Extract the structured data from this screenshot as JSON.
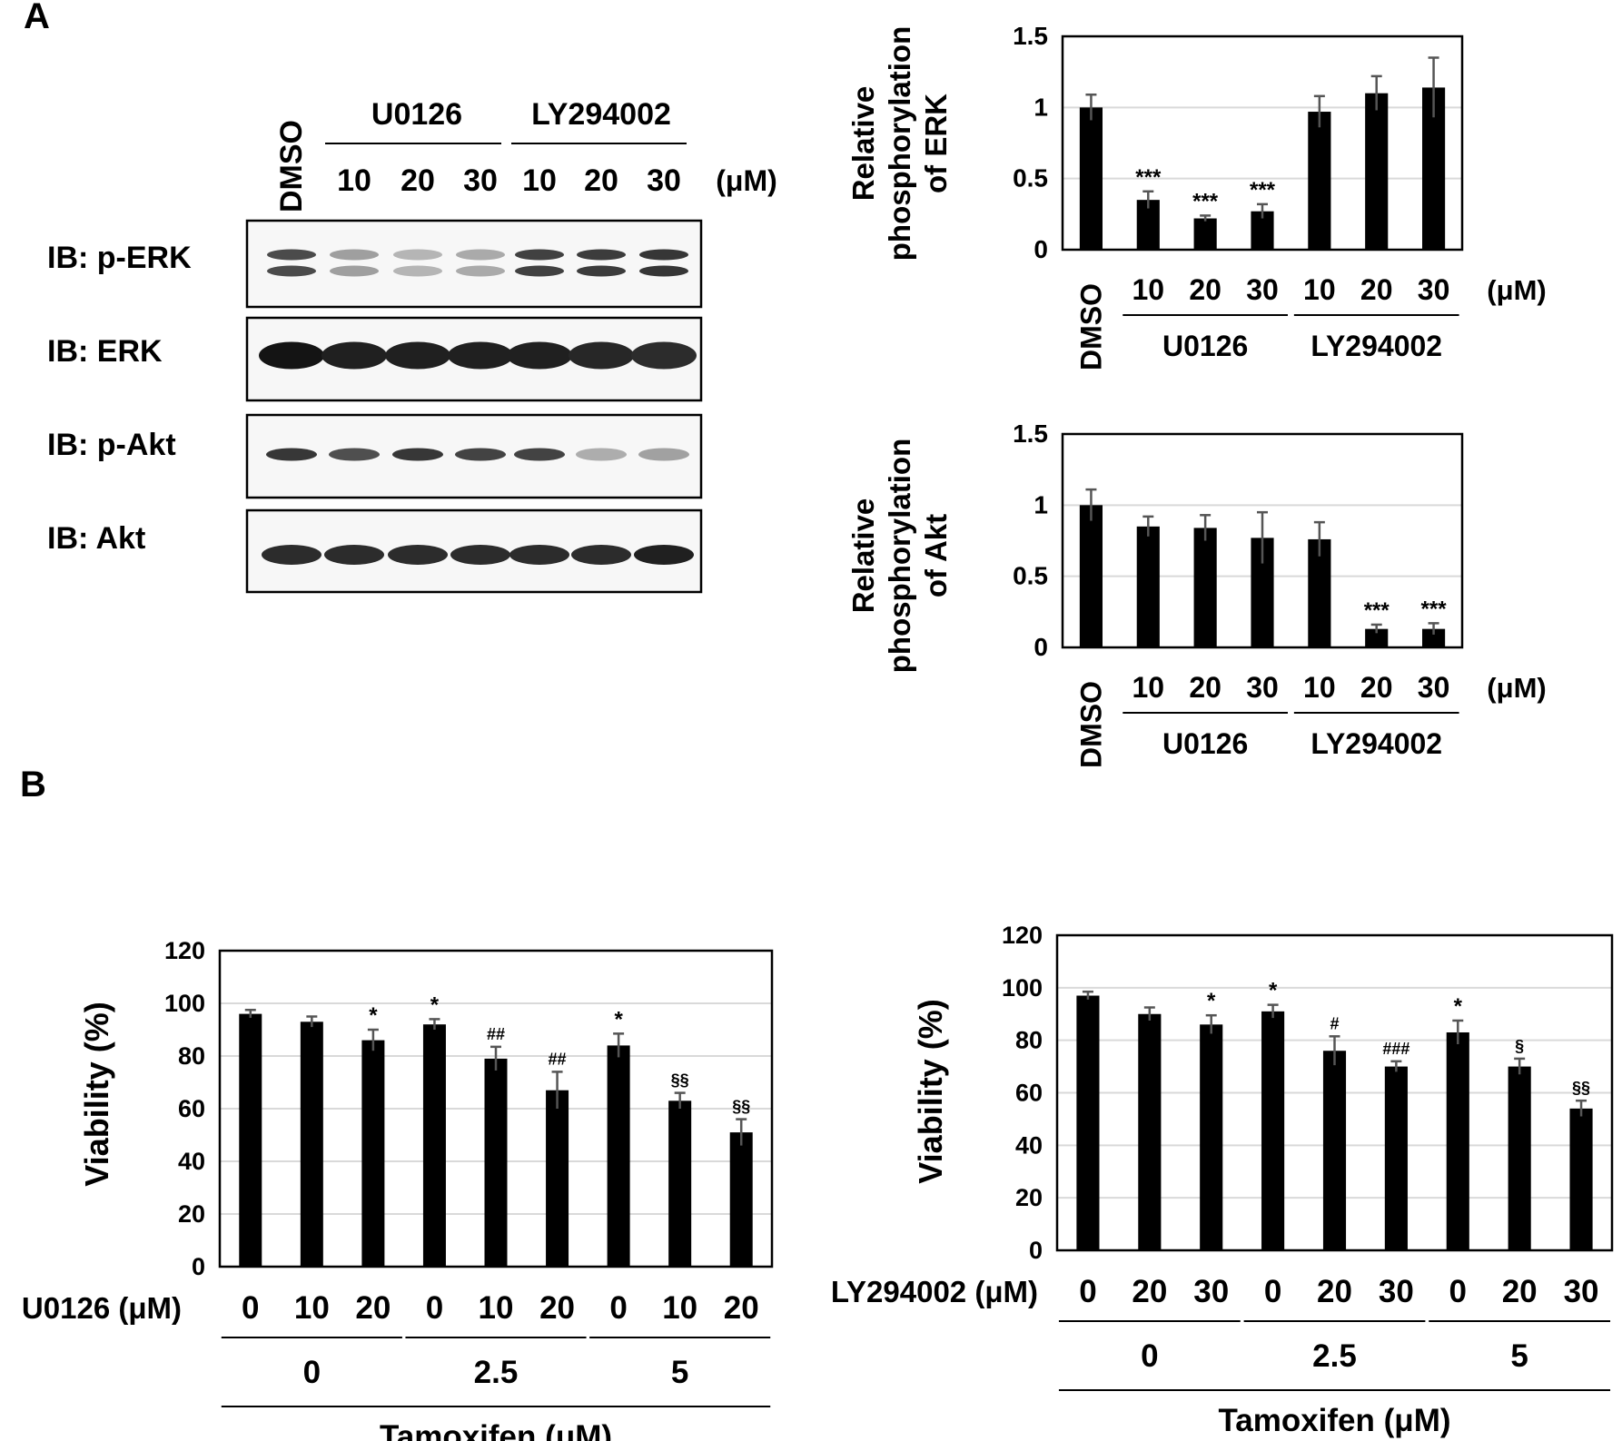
{
  "panels": {
    "a": "A",
    "b": "B"
  },
  "blot": {
    "lanes": [
      "DMSO",
      "10",
      "20",
      "30",
      "10",
      "20",
      "30"
    ],
    "groups": [
      "U0126",
      "LY294002"
    ],
    "unit": "(μM)",
    "rows": [
      {
        "label": "IB: p-ERK",
        "band": "doublet",
        "intensity": [
          0.85,
          0.45,
          0.35,
          0.4,
          0.9,
          0.92,
          0.95
        ]
      },
      {
        "label": "IB: ERK",
        "band": "thick",
        "intensity": [
          1.0,
          0.95,
          0.95,
          0.95,
          0.95,
          0.92,
          0.9
        ]
      },
      {
        "label": "IB: p-Akt",
        "band": "single",
        "intensity": [
          0.85,
          0.75,
          0.85,
          0.8,
          0.8,
          0.35,
          0.4
        ]
      },
      {
        "label": "IB: Akt",
        "band": "single-thick",
        "intensity": [
          0.9,
          0.9,
          0.9,
          0.9,
          0.9,
          0.9,
          0.95
        ]
      }
    ]
  },
  "chart_data": [
    {
      "id": "erk",
      "type": "bar",
      "ylabel": [
        "Relative",
        "phosphorylation",
        "of ERK"
      ],
      "ylim": [
        0,
        1.5
      ],
      "yticks": [
        0,
        0.5,
        1,
        1.5
      ],
      "ytick_labels": [
        "0",
        "0.5",
        "1",
        "1.5"
      ],
      "grid": true,
      "categories": [
        "DMSO",
        "10",
        "20",
        "30",
        "10",
        "20",
        "30"
      ],
      "values": [
        1.0,
        0.35,
        0.22,
        0.27,
        0.97,
        1.1,
        1.14
      ],
      "errors": [
        0.09,
        0.06,
        0.02,
        0.05,
        0.11,
        0.12,
        0.21
      ],
      "annotations": [
        "",
        "***",
        "***",
        "***",
        "",
        "",
        ""
      ],
      "groups": [
        {
          "label": "U0126",
          "from": 1,
          "to": 3
        },
        {
          "label": "LY294002",
          "from": 4,
          "to": 6
        }
      ],
      "unit": "(μM)"
    },
    {
      "id": "akt",
      "type": "bar",
      "ylabel": [
        "Relative",
        "phosphorylation",
        "of Akt"
      ],
      "ylim": [
        0,
        1.5
      ],
      "yticks": [
        0,
        0.5,
        1,
        1.5
      ],
      "ytick_labels": [
        "0",
        "0.5",
        "1",
        "1.5"
      ],
      "grid": true,
      "categories": [
        "DMSO",
        "10",
        "20",
        "30",
        "10",
        "20",
        "30"
      ],
      "values": [
        1.0,
        0.85,
        0.84,
        0.77,
        0.76,
        0.13,
        0.13
      ],
      "errors": [
        0.11,
        0.07,
        0.09,
        0.18,
        0.12,
        0.03,
        0.04
      ],
      "annotations": [
        "",
        "",
        "",
        "",
        "",
        "***",
        "***"
      ],
      "groups": [
        {
          "label": "U0126",
          "from": 1,
          "to": 3
        },
        {
          "label": "LY294002",
          "from": 4,
          "to": 6
        }
      ],
      "unit": "(μM)"
    },
    {
      "id": "via-u0126",
      "type": "bar",
      "ylabel": [
        "Viability (%)"
      ],
      "ylim": [
        0,
        120
      ],
      "yticks": [
        0,
        20,
        40,
        60,
        80,
        100,
        120
      ],
      "ytick_labels": [
        "0",
        "20",
        "40",
        "60",
        "80",
        "100",
        "120"
      ],
      "grid": true,
      "inhibitor_label": "U0126 (μM)",
      "categories": [
        "0",
        "10",
        "20",
        "0",
        "10",
        "20",
        "0",
        "10",
        "20"
      ],
      "values": [
        96,
        93,
        86,
        92,
        79,
        67,
        84,
        63,
        51
      ],
      "errors": [
        1.5,
        2,
        4,
        2,
        4.5,
        7,
        4.5,
        3,
        5
      ],
      "annotations": [
        "",
        "",
        "*",
        "*",
        "##",
        "##",
        "*",
        "§§",
        "§§"
      ],
      "groups": [
        {
          "label": "0",
          "from": 0,
          "to": 2
        },
        {
          "label": "2.5",
          "from": 3,
          "to": 5
        },
        {
          "label": "5",
          "from": 6,
          "to": 8
        }
      ],
      "xlabel": "Tamoxifen (μM)"
    },
    {
      "id": "via-ly",
      "type": "bar",
      "ylabel": [
        "Viability (%)"
      ],
      "ylim": [
        0,
        120
      ],
      "yticks": [
        0,
        20,
        40,
        60,
        80,
        100,
        120
      ],
      "ytick_labels": [
        "0",
        "20",
        "40",
        "60",
        "80",
        "100",
        "120"
      ],
      "grid": true,
      "inhibitor_label": "LY294002 (μM)",
      "categories": [
        "0",
        "20",
        "30",
        "0",
        "20",
        "30",
        "0",
        "20",
        "30"
      ],
      "values": [
        97,
        90,
        86,
        91,
        76,
        70,
        83,
        70,
        54
      ],
      "errors": [
        1.5,
        2.5,
        3.5,
        2.5,
        5.5,
        2,
        4.5,
        3,
        3
      ],
      "annotations": [
        "",
        "",
        "*",
        "*",
        "#",
        "###",
        "*",
        "§",
        "§§"
      ],
      "groups": [
        {
          "label": "0",
          "from": 0,
          "to": 2
        },
        {
          "label": "2.5",
          "from": 3,
          "to": 5
        },
        {
          "label": "5",
          "from": 6,
          "to": 8
        }
      ],
      "xlabel": "Tamoxifen (μM)"
    }
  ]
}
